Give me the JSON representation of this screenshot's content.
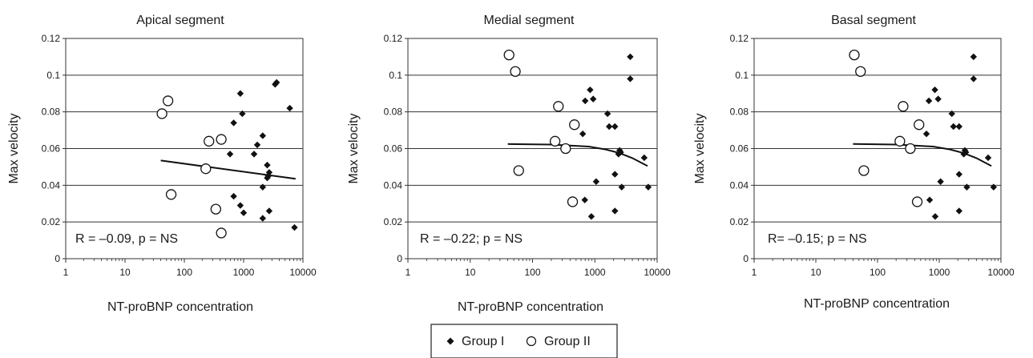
{
  "legend": {
    "items": [
      {
        "label": "Group I",
        "marker": "filled-diamond"
      },
      {
        "label": "Group II",
        "marker": "open-circle"
      }
    ]
  },
  "chart_data": [
    {
      "type": "scatter",
      "title": "Apical segment",
      "xlabel": "NT-proBNP concentration",
      "ylabel": "Max velocity",
      "xscale": "log",
      "xlim": [
        1,
        10000
      ],
      "ylim": [
        0,
        0.12
      ],
      "x_ticks": [
        "1",
        "10",
        "100",
        "1000",
        "10000"
      ],
      "y_ticks": [
        "0",
        "0.02",
        "0.04",
        "0.06",
        "0.08",
        "0.1",
        "0.12"
      ],
      "grid": "horizontal",
      "annotation": "R = –0.09, p = NS",
      "series": [
        {
          "name": "Group I",
          "marker": "filled-diamond",
          "points": [
            [
              3600,
              0.096
            ],
            [
              3400,
              0.095
            ],
            [
              6000,
              0.082
            ],
            [
              880,
              0.09
            ],
            [
              950,
              0.079
            ],
            [
              680,
              0.074
            ],
            [
              2100,
              0.067
            ],
            [
              1700,
              0.062
            ],
            [
              590,
              0.057
            ],
            [
              1500,
              0.057
            ],
            [
              2500,
              0.051
            ],
            [
              2700,
              0.047
            ],
            [
              2600,
              0.045
            ],
            [
              2500,
              0.044
            ],
            [
              2100,
              0.039
            ],
            [
              680,
              0.034
            ],
            [
              880,
              0.029
            ],
            [
              1000,
              0.025
            ],
            [
              2700,
              0.026
            ],
            [
              2100,
              0.022
            ],
            [
              7200,
              0.017
            ]
          ]
        },
        {
          "name": "Group II",
          "marker": "open-circle",
          "points": [
            [
              42,
              0.079
            ],
            [
              53,
              0.086
            ],
            [
              60,
              0.035
            ],
            [
              260,
              0.064
            ],
            [
              420,
              0.065
            ],
            [
              230,
              0.049
            ],
            [
              340,
              0.027
            ],
            [
              420,
              0.014
            ]
          ]
        }
      ],
      "trendline": [
        [
          40,
          0.0535
        ],
        [
          7500,
          0.0435
        ]
      ]
    },
    {
      "type": "scatter",
      "title": "Medial segment",
      "xlabel": "NT-proBNP concentration",
      "ylabel": "Max velocity",
      "xscale": "log",
      "xlim": [
        1,
        10000
      ],
      "ylim": [
        0,
        0.12
      ],
      "x_ticks": [
        "1",
        "10",
        "100",
        "1000",
        "10000"
      ],
      "y_ticks": [
        "0",
        "0.02",
        "0.04",
        "0.06",
        "0.08",
        "0.1",
        "0.12"
      ],
      "grid": "horizontal",
      "annotation": "R = –0.22; p = NS",
      "series": [
        {
          "name": "Group I",
          "marker": "filled-diamond",
          "points": [
            [
              3700,
              0.11
            ],
            [
              3700,
              0.098
            ],
            [
              840,
              0.092
            ],
            [
              940,
              0.087
            ],
            [
              700,
              0.086
            ],
            [
              1600,
              0.079
            ],
            [
              1700,
              0.072
            ],
            [
              2100,
              0.072
            ],
            [
              640,
              0.068
            ],
            [
              2500,
              0.059
            ],
            [
              2600,
              0.058
            ],
            [
              2400,
              0.057
            ],
            [
              6200,
              0.055
            ],
            [
              2100,
              0.046
            ],
            [
              1050,
              0.042
            ],
            [
              2700,
              0.039
            ],
            [
              7200,
              0.039
            ],
            [
              690,
              0.032
            ],
            [
              2100,
              0.026
            ],
            [
              880,
              0.023
            ]
          ]
        },
        {
          "name": "Group II",
          "marker": "open-circle",
          "points": [
            [
              42,
              0.111
            ],
            [
              53,
              0.102
            ],
            [
              260,
              0.083
            ],
            [
              470,
              0.073
            ],
            [
              230,
              0.064
            ],
            [
              340,
              0.06
            ],
            [
              60,
              0.048
            ],
            [
              440,
              0.031
            ]
          ]
        }
      ],
      "trendline": [
        [
          40,
          0.0625
        ],
        [
          200,
          0.0622
        ],
        [
          800,
          0.0611
        ],
        [
          1500,
          0.0595
        ],
        [
          2500,
          0.0575
        ],
        [
          4000,
          0.0548
        ],
        [
          7000,
          0.0505
        ]
      ]
    },
    {
      "type": "scatter",
      "title": "Basal segment",
      "xlabel": "NT-proBNP concentration",
      "ylabel": "Max velocity",
      "xscale": "log",
      "xlim": [
        1,
        10000
      ],
      "ylim": [
        0,
        0.12
      ],
      "x_ticks": [
        "1",
        "10",
        "100",
        "1000",
        "10000"
      ],
      "y_ticks": [
        "0",
        "0.02",
        "0.04",
        "0.06",
        "0.08",
        "0.1",
        "0.12"
      ],
      "grid": "horizontal",
      "annotation": "R= –0.15; p = NS",
      "series": [
        {
          "name": "Group I",
          "marker": "filled-diamond",
          "points": [
            [
              3600,
              0.11
            ],
            [
              3600,
              0.098
            ],
            [
              850,
              0.092
            ],
            [
              960,
              0.087
            ],
            [
              680,
              0.086
            ],
            [
              1600,
              0.079
            ],
            [
              1700,
              0.072
            ],
            [
              2100,
              0.072
            ],
            [
              620,
              0.068
            ],
            [
              2600,
              0.059
            ],
            [
              2700,
              0.058
            ],
            [
              2500,
              0.057
            ],
            [
              6200,
              0.055
            ],
            [
              2100,
              0.046
            ],
            [
              1050,
              0.042
            ],
            [
              2800,
              0.039
            ],
            [
              7600,
              0.039
            ],
            [
              700,
              0.032
            ],
            [
              2100,
              0.026
            ],
            [
              860,
              0.023
            ]
          ]
        },
        {
          "name": "Group II",
          "marker": "open-circle",
          "points": [
            [
              42,
              0.111
            ],
            [
              53,
              0.102
            ],
            [
              260,
              0.083
            ],
            [
              470,
              0.073
            ],
            [
              230,
              0.064
            ],
            [
              340,
              0.06
            ],
            [
              60,
              0.048
            ],
            [
              440,
              0.031
            ]
          ]
        }
      ],
      "trendline": [
        [
          40,
          0.0625
        ],
        [
          200,
          0.0622
        ],
        [
          800,
          0.0611
        ],
        [
          1500,
          0.0595
        ],
        [
          2500,
          0.0575
        ],
        [
          4000,
          0.0548
        ],
        [
          7000,
          0.0505
        ]
      ]
    }
  ]
}
